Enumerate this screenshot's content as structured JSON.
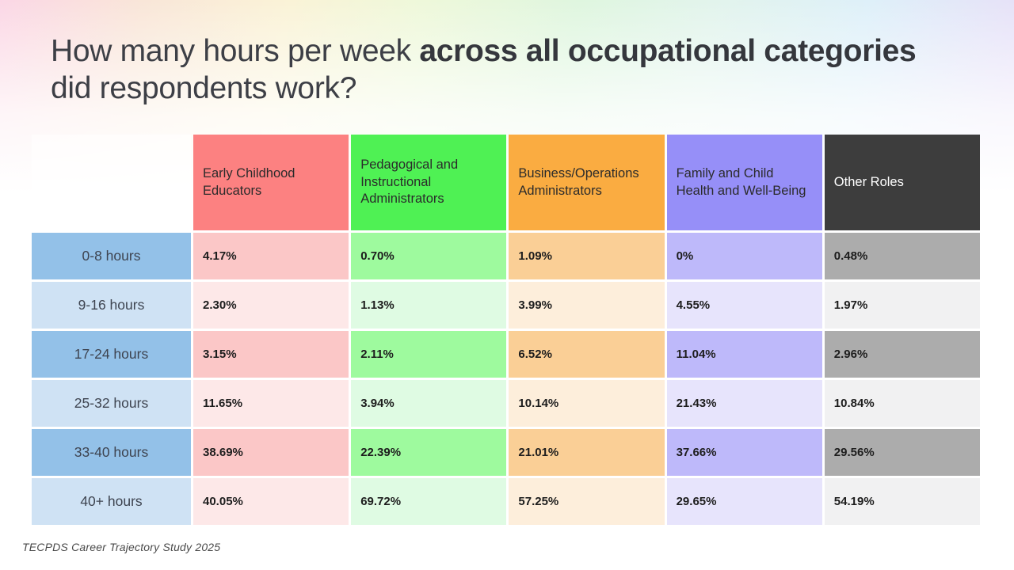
{
  "slide": {
    "title_prefix": "How many hours per week ",
    "title_bold": "across all occupational categories",
    "title_suffix": " did respondents work?",
    "footer": "TECPDS Career Trajectory Study 2025"
  },
  "colors": {
    "row_label_strong": "#93C1E8",
    "row_label_light": "#CFE2F4",
    "title_text": "#3D3F46",
    "value_text": "#1D1D1D"
  },
  "chart_data": {
    "type": "table",
    "title": "How many hours per week across all occupational categories did respondents work?",
    "row_header": [
      "0-8 hours",
      "9-16 hours",
      "17-24 hours",
      "25-32 hours",
      "33-40 hours",
      "40+ hours"
    ],
    "columns": [
      {
        "label": "Early Childhood Educators",
        "header_bg": "#FC8181",
        "header_text": "#2B2B2B",
        "tint_strong": "#FBC7C7",
        "tint_light": "#FDE8E8"
      },
      {
        "label": "Pedagogical and Instructional Administrators",
        "header_bg": "#4FF154",
        "header_text": "#2B2B2B",
        "tint_strong": "#9EFA9E",
        "tint_light": "#DFFBE3"
      },
      {
        "label": "Business/Operations Administrators",
        "header_bg": "#FAAC41",
        "header_text": "#2B2B2B",
        "tint_strong": "#FACF96",
        "tint_light": "#FDEEDB"
      },
      {
        "label": "Family and Child Health and Well-Being",
        "header_bg": "#968FF8",
        "header_text": "#2B2B2B",
        "tint_strong": "#BEB9FA",
        "tint_light": "#E7E4FC"
      },
      {
        "label": "Other Roles",
        "header_bg": "#3D3D3D",
        "header_text": "#FFFFFF",
        "tint_strong": "#ACACAC",
        "tint_light": "#F1F1F2"
      }
    ],
    "values": [
      [
        "4.17%",
        "0.70%",
        "1.09%",
        "0%",
        "0.48%"
      ],
      [
        "2.30%",
        "1.13%",
        "3.99%",
        "4.55%",
        "1.97%"
      ],
      [
        "3.15%",
        "2.11%",
        "6.52%",
        "11.04%",
        "2.96%"
      ],
      [
        "11.65%",
        "3.94%",
        "10.14%",
        "21.43%",
        "10.84%"
      ],
      [
        "38.69%",
        "22.39%",
        "21.01%",
        "37.66%",
        "29.56%"
      ],
      [
        "40.05%",
        "69.72%",
        "57.25%",
        "29.65%",
        "54.19%"
      ]
    ]
  }
}
